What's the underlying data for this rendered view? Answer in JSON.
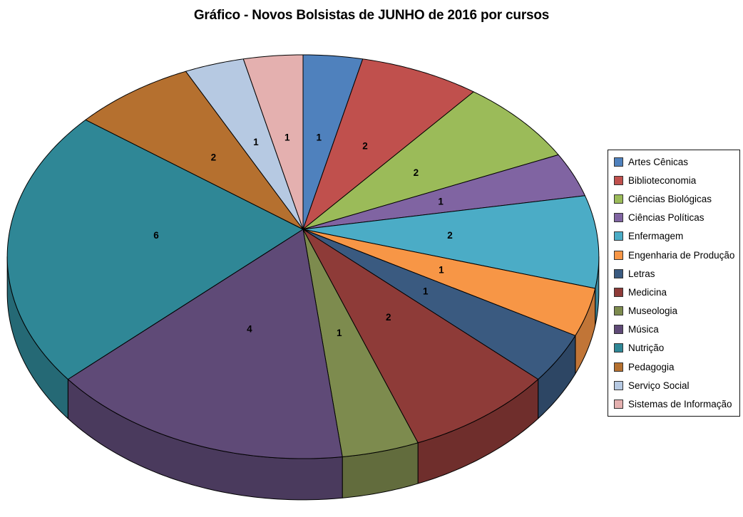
{
  "title": "Gráfico - Novos Bolsistas de JUNHO de 2016 por cursos",
  "chart_data": {
    "type": "pie",
    "style": "3d-perspective",
    "title": "Gráfico - Novos Bolsistas de JUNHO de 2016 por cursos",
    "legend_position": "right",
    "direction": "clockwise",
    "start_angle_deg": 0,
    "total": 27,
    "data_labels": "value",
    "categories": [
      "Artes Cênicas",
      "Biblioteconomia",
      "Ciências Biológicas",
      "Ciências Políticas",
      "Enfermagem",
      "Engenharia de Produção",
      "Letras",
      "Medicina",
      "Museologia",
      "Música",
      "Nutrição",
      "Pedagogia",
      "Serviço Social",
      "Sistemas de Informação"
    ],
    "values": [
      1,
      2,
      2,
      1,
      2,
      1,
      1,
      2,
      1,
      4,
      6,
      2,
      1,
      1
    ],
    "colors": [
      "#4F81BD",
      "#C0504D",
      "#9BBB59",
      "#8064A2",
      "#4BACC6",
      "#F79646",
      "#3A5A80",
      "#8E3B38",
      "#7D8B4E",
      "#5F4A77",
      "#2F8796",
      "#B5702F",
      "#B6C9E2",
      "#E4B0AF"
    ]
  }
}
